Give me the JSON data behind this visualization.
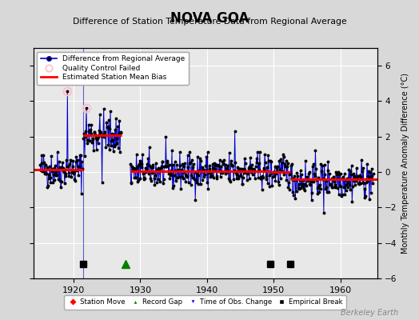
{
  "title": "NOVA GOA",
  "subtitle": "Difference of Station Temperature Data from Regional Average",
  "ylabel": "Monthly Temperature Anomaly Difference (°C)",
  "watermark": "Berkeley Earth",
  "xlim": [
    1914.0,
    1965.5
  ],
  "ylim": [
    -6,
    7
  ],
  "yticks": [
    -6,
    -4,
    -2,
    0,
    2,
    4,
    6
  ],
  "xticks": [
    1920,
    1930,
    1940,
    1950,
    1960
  ],
  "background_color": "#d8d8d8",
  "plot_bg_color": "#e8e8e8",
  "grid_color": "white",
  "line_color": "#0000cc",
  "bias_color": "red",
  "marker_color": "black",
  "qc_marker_color": "pink",
  "segments": [
    {
      "x_start": 1914.0,
      "x_end": 1921.5,
      "bias": 0.15
    },
    {
      "x_start": 1921.5,
      "x_end": 1927.2,
      "bias": 2.1
    },
    {
      "x_start": 1928.5,
      "x_end": 1949.5,
      "bias": 0.05
    },
    {
      "x_start": 1949.5,
      "x_end": 1952.5,
      "bias": 0.0
    },
    {
      "x_start": 1952.5,
      "x_end": 1965.5,
      "bias": -0.4
    }
  ],
  "empirical_breaks": [
    1921.5,
    1949.5,
    1952.5
  ],
  "record_gaps": [
    1927.8
  ],
  "time_of_obs_changes": [],
  "station_moves": [],
  "qc_failed_points": [
    [
      1919.08,
      4.55
    ],
    [
      1921.92,
      3.6
    ]
  ],
  "gap_vline_x": 1921.5,
  "gap_line_color": "#6699ff",
  "seed": 42
}
